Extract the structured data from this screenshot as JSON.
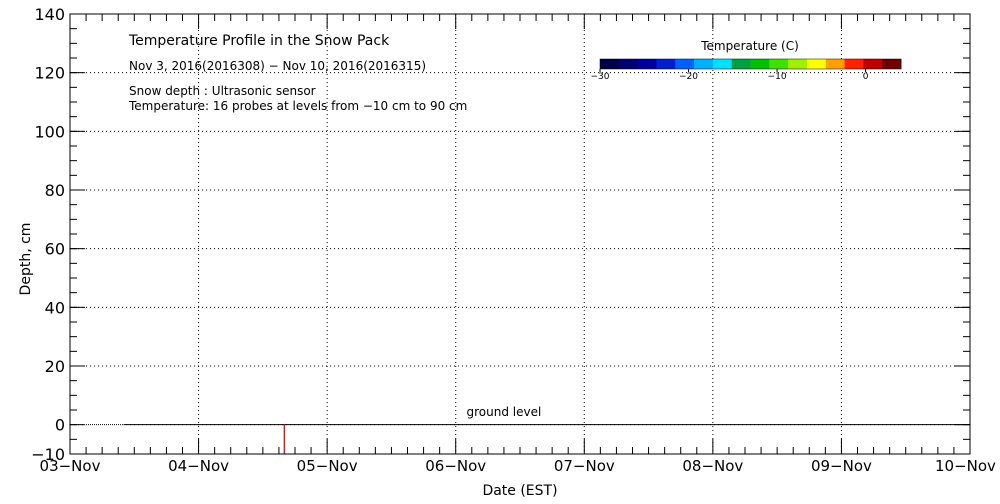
{
  "chart_data": {
    "type": "line",
    "title": "Temperature Profile in the Snow Pack",
    "subtitle": "Nov  3, 2016(2016308) − Nov 10, 2016(2016315)",
    "notes": [
      "Snow depth : Ultrasonic sensor",
      "Temperature: 16 probes at levels from −10 cm to 90 cm"
    ],
    "xlabel": "Date (EST)",
    "ylabel": "Depth, cm",
    "x_ticks": [
      "03−Nov",
      "04−Nov",
      "05−Nov",
      "06−Nov",
      "07−Nov",
      "08−Nov",
      "09−Nov",
      "10−Nov"
    ],
    "y_ticks": [
      "−10",
      "0",
      "20",
      "40",
      "60",
      "80",
      "100",
      "120",
      "140"
    ],
    "ylim": [
      -10,
      140
    ],
    "xlim": [
      "2016-11-03",
      "2016-11-10"
    ],
    "grid": true,
    "series": [
      {
        "x": [
          "2016-11-03 10:00",
          "2016-11-10 00:00"
        ],
        "values": [
          0,
          0
        ]
      }
    ],
    "spikes": [
      {
        "x": "2016-11-04 16:00",
        "values": [
          -10,
          0
        ]
      }
    ],
    "annotations": [
      {
        "text": "ground level",
        "x": "2016-11-06 09:00",
        "y": 2
      }
    ],
    "colorbar": {
      "title": "Temperature (C)",
      "ticks": [
        "−30",
        "−20",
        "−10",
        "0"
      ],
      "range": [
        -30,
        4
      ],
      "colors": [
        "#00004a",
        "#000070",
        "#00009c",
        "#0020d0",
        "#0060ff",
        "#00b0ff",
        "#00e0ff",
        "#00a040",
        "#00c000",
        "#40e000",
        "#a0f000",
        "#ffff00",
        "#ffa000",
        "#ff2000",
        "#c00000",
        "#700000"
      ]
    },
    "colors": {
      "series": "#000000",
      "spike": "#c00000"
    }
  }
}
